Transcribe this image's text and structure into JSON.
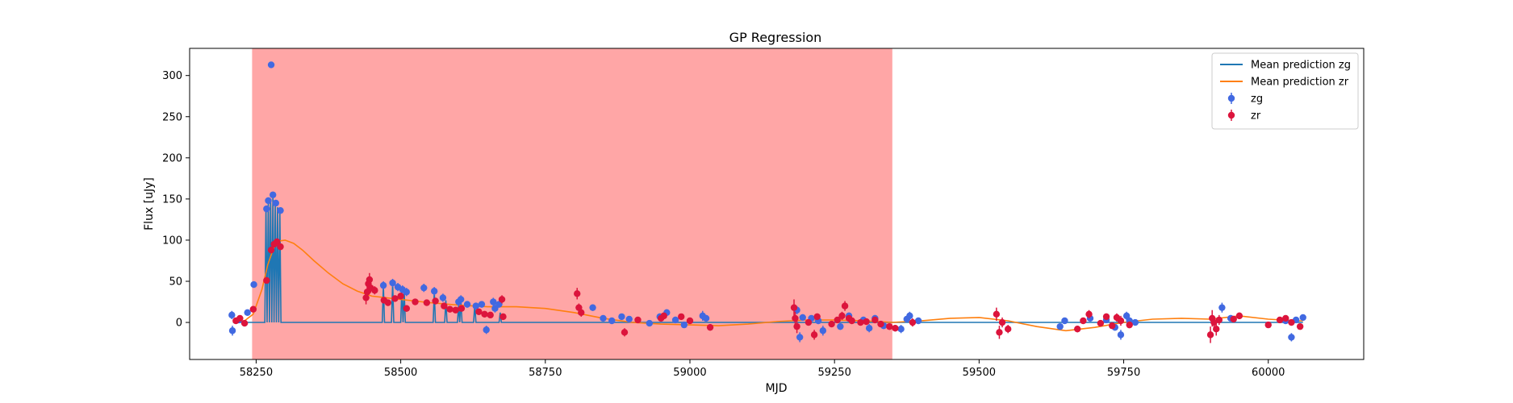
{
  "chart_data": {
    "type": "scatter",
    "title": "GP Regression",
    "xlabel": "MJD",
    "ylabel": "Flux [uJy]",
    "xlim": [
      58135,
      60165
    ],
    "ylim": [
      -45,
      333
    ],
    "xticks": [
      58250,
      58500,
      58750,
      59000,
      59250,
      59500,
      59750,
      60000
    ],
    "yticks": [
      0,
      50,
      100,
      150,
      200,
      250,
      300
    ],
    "grid": false,
    "legend_position": "top-right",
    "shaded_region": {
      "x_start": 58243,
      "x_end": 59350,
      "color": "#ff0000"
    },
    "legend": [
      {
        "label": "Mean prediction zg",
        "kind": "line",
        "color": "#1f77b4"
      },
      {
        "label": "Mean prediction zr",
        "kind": "line",
        "color": "#ff7f0e"
      },
      {
        "label": "zg",
        "kind": "marker",
        "color": "#4169e1"
      },
      {
        "label": "zr",
        "kind": "marker",
        "color": "#dc143c"
      }
    ],
    "series": [
      {
        "name": "Mean prediction zg",
        "kind": "line",
        "color": "#1f77b4",
        "x": [
          58210,
          58265,
          58267,
          58269,
          58271,
          58273,
          58275,
          58277,
          58279,
          58281,
          58283,
          58285,
          58287,
          58289,
          58291,
          58293,
          58468,
          58470,
          58472,
          58484,
          58486,
          58488,
          58500,
          58502,
          58504,
          58506,
          58508,
          58556,
          58558,
          58560,
          58576,
          58578,
          58580,
          58598,
          58600,
          58602,
          58604,
          58606,
          58608,
          58626,
          58628,
          58630,
          58670,
          58672,
          58674,
          60060
        ],
        "y": [
          0,
          0,
          140,
          0,
          148,
          0,
          150,
          0,
          155,
          0,
          145,
          0,
          140,
          0,
          136,
          0,
          0,
          45,
          0,
          0,
          48,
          0,
          0,
          42,
          0,
          38,
          0,
          0,
          38,
          0,
          0,
          27,
          0,
          0,
          20,
          0,
          27,
          0,
          0,
          0,
          22,
          0,
          0,
          12,
          0,
          0
        ]
      },
      {
        "name": "Mean prediction zr",
        "kind": "line",
        "color": "#ff7f0e",
        "x": [
          58210,
          58230,
          58245,
          58260,
          58270,
          58280,
          58290,
          58300,
          58315,
          58330,
          58350,
          58375,
          58400,
          58425,
          58450,
          58475,
          58500,
          58550,
          58600,
          58650,
          58700,
          58750,
          58800,
          58850,
          58900,
          58950,
          59000,
          59050,
          59100,
          59150,
          59200,
          59250,
          59300,
          59350,
          59400,
          59450,
          59500,
          59550,
          59600,
          59650,
          59700,
          59750,
          59800,
          59850,
          59900,
          59950,
          60000,
          60050,
          60060
        ],
        "y": [
          0,
          2,
          10,
          40,
          70,
          90,
          99,
          100,
          96,
          88,
          75,
          60,
          47,
          38,
          32,
          30,
          28,
          24,
          21,
          19,
          19,
          17,
          12,
          5,
          0,
          -2,
          -3,
          -4,
          -2,
          1,
          3,
          3,
          2,
          0,
          2,
          5,
          6,
          2,
          -5,
          -10,
          -6,
          0,
          4,
          5,
          4,
          8,
          4,
          2,
          2
        ]
      },
      {
        "name": "zg",
        "kind": "points",
        "color": "#4169e1",
        "points": [
          [
            58208,
            9,
            5
          ],
          [
            58209,
            -10,
            6
          ],
          [
            58220,
            3,
            4
          ],
          [
            58235,
            12,
            3
          ],
          [
            58246,
            46,
            3
          ],
          [
            58268,
            138,
            4
          ],
          [
            58271,
            148,
            4
          ],
          [
            58276,
            313,
            3
          ],
          [
            58279,
            155,
            4
          ],
          [
            58284,
            145,
            4
          ],
          [
            58292,
            136,
            4
          ],
          [
            58470,
            45,
            5
          ],
          [
            58486,
            48,
            5
          ],
          [
            58495,
            43,
            5
          ],
          [
            58503,
            40,
            5
          ],
          [
            58510,
            37,
            5
          ],
          [
            58540,
            42,
            5
          ],
          [
            58558,
            38,
            5
          ],
          [
            58573,
            30,
            5
          ],
          [
            58600,
            25,
            5
          ],
          [
            58604,
            28,
            5
          ],
          [
            58615,
            22,
            4
          ],
          [
            58630,
            20,
            4
          ],
          [
            58640,
            22,
            4
          ],
          [
            58648,
            -9,
            5
          ],
          [
            58660,
            25,
            5
          ],
          [
            58663,
            17,
            5
          ],
          [
            58670,
            22,
            4
          ],
          [
            58832,
            18,
            4
          ],
          [
            58850,
            5,
            3
          ],
          [
            58865,
            2,
            3
          ],
          [
            58882,
            7,
            3
          ],
          [
            58895,
            4,
            3
          ],
          [
            58930,
            -1,
            3
          ],
          [
            58948,
            7,
            4
          ],
          [
            58960,
            12,
            4
          ],
          [
            58975,
            3,
            4
          ],
          [
            58990,
            -3,
            3
          ],
          [
            59022,
            8,
            6
          ],
          [
            59028,
            5,
            4
          ],
          [
            59185,
            15,
            5
          ],
          [
            59190,
            -18,
            6
          ],
          [
            59195,
            6,
            4
          ],
          [
            59210,
            5,
            3
          ],
          [
            59222,
            2,
            4
          ],
          [
            59230,
            -10,
            6
          ],
          [
            59260,
            -5,
            4
          ],
          [
            59275,
            8,
            4
          ],
          [
            59300,
            3,
            4
          ],
          [
            59310,
            -7,
            5
          ],
          [
            59320,
            5,
            4
          ],
          [
            59335,
            -4,
            4
          ],
          [
            59365,
            -8,
            5
          ],
          [
            59375,
            4,
            4
          ],
          [
            59380,
            8,
            5
          ],
          [
            59395,
            2,
            4
          ],
          [
            59640,
            -5,
            3
          ],
          [
            59648,
            2,
            3
          ],
          [
            59692,
            5,
            4
          ],
          [
            59720,
            3,
            3
          ],
          [
            59735,
            -6,
            4
          ],
          [
            59745,
            -15,
            6
          ],
          [
            59755,
            8,
            5
          ],
          [
            59760,
            2,
            4
          ],
          [
            59770,
            0,
            3
          ],
          [
            59920,
            18,
            6
          ],
          [
            59935,
            5,
            4
          ],
          [
            60030,
            2,
            3
          ],
          [
            60040,
            -18,
            5
          ],
          [
            60048,
            3,
            3
          ],
          [
            60060,
            6,
            3
          ]
        ]
      },
      {
        "name": "zr",
        "kind": "points",
        "color": "#dc143c",
        "points": [
          [
            58215,
            2,
            3
          ],
          [
            58222,
            5,
            3
          ],
          [
            58230,
            -1,
            3
          ],
          [
            58245,
            16,
            3
          ],
          [
            58268,
            51,
            4
          ],
          [
            58276,
            88,
            4
          ],
          [
            58281,
            95,
            4
          ],
          [
            58286,
            98,
            4
          ],
          [
            58292,
            92,
            4
          ],
          [
            58440,
            30,
            8
          ],
          [
            58442,
            37,
            8
          ],
          [
            58444,
            47,
            8
          ],
          [
            58446,
            52,
            8
          ],
          [
            58448,
            42,
            6
          ],
          [
            58455,
            39,
            5
          ],
          [
            58471,
            27,
            4
          ],
          [
            58478,
            24,
            4
          ],
          [
            58490,
            29,
            4
          ],
          [
            58500,
            32,
            4
          ],
          [
            58510,
            17,
            4
          ],
          [
            58525,
            25,
            3
          ],
          [
            58545,
            24,
            3
          ],
          [
            58560,
            26,
            3
          ],
          [
            58575,
            20,
            3
          ],
          [
            58585,
            16,
            3
          ],
          [
            58595,
            15,
            3
          ],
          [
            58605,
            17,
            3
          ],
          [
            58635,
            13,
            3
          ],
          [
            58645,
            10,
            3
          ],
          [
            58655,
            9,
            3
          ],
          [
            58675,
            28,
            5
          ],
          [
            58677,
            7,
            4
          ],
          [
            58805,
            35,
            7
          ],
          [
            58808,
            18,
            5
          ],
          [
            58812,
            12,
            5
          ],
          [
            58887,
            -12,
            5
          ],
          [
            58910,
            3,
            3
          ],
          [
            58950,
            5,
            3
          ],
          [
            58955,
            8,
            3
          ],
          [
            58985,
            7,
            3
          ],
          [
            59000,
            2,
            3
          ],
          [
            59035,
            -6,
            4
          ],
          [
            59180,
            18,
            10
          ],
          [
            59182,
            5,
            8
          ],
          [
            59185,
            -5,
            8
          ],
          [
            59205,
            0,
            3
          ],
          [
            59215,
            -15,
            6
          ],
          [
            59220,
            7,
            4
          ],
          [
            59245,
            -2,
            3
          ],
          [
            59255,
            3,
            3
          ],
          [
            59263,
            8,
            5
          ],
          [
            59268,
            20,
            6
          ],
          [
            59275,
            5,
            4
          ],
          [
            59280,
            2,
            3
          ],
          [
            59295,
            0,
            3
          ],
          [
            59305,
            1,
            3
          ],
          [
            59320,
            3,
            4
          ],
          [
            59330,
            -2,
            3
          ],
          [
            59345,
            -5,
            4
          ],
          [
            59355,
            -7,
            4
          ],
          [
            59385,
            0,
            5
          ],
          [
            59530,
            10,
            8
          ],
          [
            59535,
            -12,
            8
          ],
          [
            59540,
            0,
            6
          ],
          [
            59550,
            -8,
            5
          ],
          [
            59670,
            -8,
            4
          ],
          [
            59680,
            2,
            3
          ],
          [
            59690,
            10,
            5
          ],
          [
            59710,
            -1,
            3
          ],
          [
            59720,
            7,
            4
          ],
          [
            59730,
            -4,
            3
          ],
          [
            59738,
            6,
            5
          ],
          [
            59745,
            2,
            6
          ],
          [
            59760,
            -3,
            4
          ],
          [
            59900,
            -15,
            10
          ],
          [
            59903,
            5,
            10
          ],
          [
            59906,
            0,
            8
          ],
          [
            59910,
            -8,
            8
          ],
          [
            59915,
            3,
            6
          ],
          [
            59940,
            4,
            4
          ],
          [
            59950,
            8,
            4
          ],
          [
            60000,
            -3,
            3
          ],
          [
            60020,
            3,
            3
          ],
          [
            60030,
            5,
            3
          ],
          [
            60040,
            0,
            3
          ],
          [
            60055,
            -5,
            3
          ]
        ]
      }
    ]
  }
}
